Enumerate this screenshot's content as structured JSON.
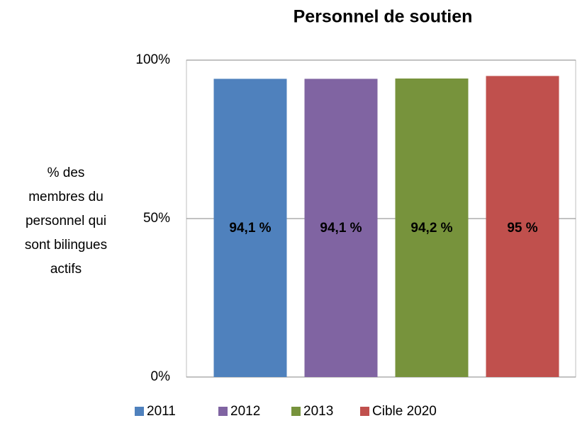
{
  "chart_data": {
    "type": "bar",
    "title": "Personnel de soutien",
    "ylabel": [
      "% des",
      "membres du",
      "personnel qui",
      "sont bilingues",
      "actifs"
    ],
    "categories": [
      "2011",
      "2012",
      "2013",
      "Cible 2020"
    ],
    "values": [
      94.1,
      94.1,
      94.2,
      95
    ],
    "value_labels": [
      "94,1 %",
      "94,1 %",
      "94,2 %",
      "95 %"
    ],
    "colors": [
      "#4f81bd",
      "#8064a2",
      "#77933c",
      "#c0504d"
    ],
    "ylim": [
      0,
      100
    ],
    "yticks": [
      {
        "value": 0,
        "label": "0%"
      },
      {
        "value": 50,
        "label": "50%"
      },
      {
        "value": 100,
        "label": "100%"
      }
    ],
    "grid": true,
    "legend": "bottom"
  }
}
